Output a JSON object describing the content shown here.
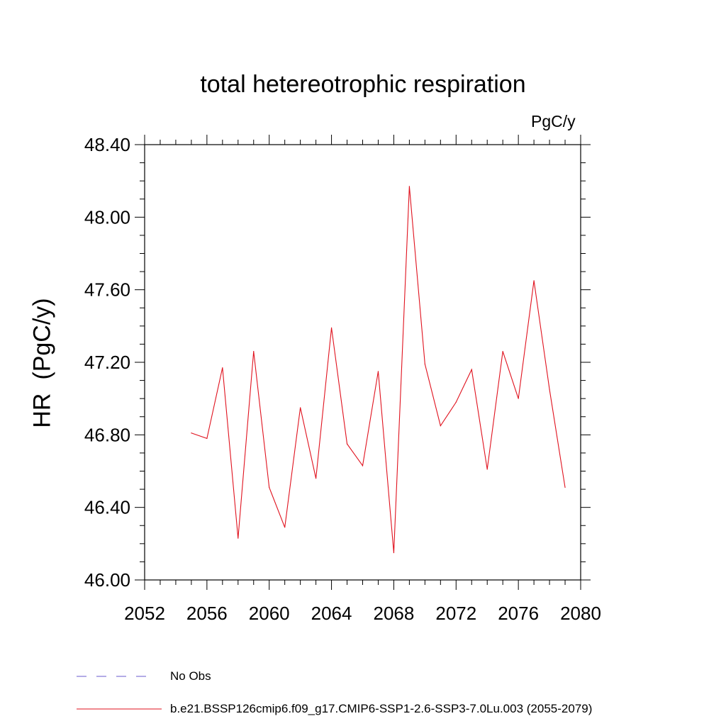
{
  "chart_data": {
    "type": "line",
    "title": "total hetereotrophic respiration",
    "units": "PgC/y",
    "ylabel": "HR  (PgC/y)",
    "xlim": [
      2052,
      2080
    ],
    "ylim": [
      46.0,
      48.4
    ],
    "xticks": [
      2052,
      2056,
      2060,
      2064,
      2068,
      2072,
      2076,
      2080
    ],
    "yticks": [
      "46.00",
      "46.40",
      "46.80",
      "47.20",
      "47.60",
      "48.00",
      "48.40"
    ],
    "series": [
      {
        "name": "b.e21.BSSP126cmip6.f09_g17.CMIP6-SSP1-2.6-SSP3-7.0Lu.003 (2055-2079)",
        "color": "#e0121e",
        "x": [
          2055,
          2056,
          2057,
          2058,
          2059,
          2060,
          2061,
          2062,
          2063,
          2064,
          2065,
          2066,
          2067,
          2068,
          2069,
          2070,
          2071,
          2072,
          2073,
          2074,
          2075,
          2076,
          2077,
          2078,
          2079
        ],
        "values": [
          46.81,
          46.78,
          47.17,
          46.23,
          47.26,
          46.51,
          46.29,
          46.95,
          46.56,
          47.39,
          46.75,
          46.63,
          47.15,
          46.15,
          48.17,
          47.19,
          46.85,
          46.98,
          47.16,
          46.61,
          47.26,
          47.0,
          47.65,
          47.05,
          46.51
        ]
      }
    ],
    "legend": [
      {
        "label": "No Obs",
        "style": "dashed",
        "color": "#6a5acd"
      },
      {
        "label": "b.e21.BSSP126cmip6.f09_g17.CMIP6-SSP1-2.6-SSP3-7.0Lu.003 (2055-2079)",
        "style": "solid",
        "color": "#e0121e"
      }
    ],
    "grid": false,
    "legend_position": "bottom-left"
  }
}
